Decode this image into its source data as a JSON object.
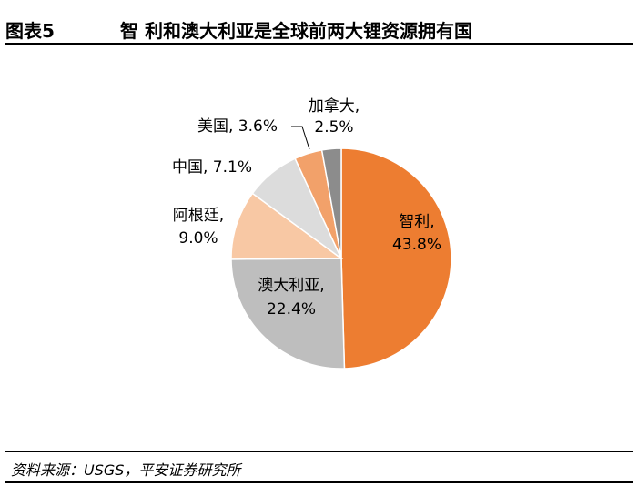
{
  "header": {
    "figure_label": "图表5",
    "title": "智 利和澳大利亚是全球前两大锂资源拥有国"
  },
  "chart_data": {
    "type": "pie",
    "title": "智 利和澳大利亚是全球前两大锂资源拥有国",
    "slices": [
      {
        "name": "智利",
        "value": 43.8,
        "label_line1": "智利,",
        "label_line2": "43.8%",
        "color": "#ED7D31"
      },
      {
        "name": "澳大利亚",
        "value": 22.4,
        "label_line1": "澳大利亚,",
        "label_line2": "22.4%",
        "color": "#BEBEBE"
      },
      {
        "name": "阿根廷",
        "value": 9.0,
        "label_line1": "阿根廷,",
        "label_line2": "9.0%",
        "color": "#F8C8A4"
      },
      {
        "name": "中国",
        "value": 7.1,
        "label_line1": "中国, 7.1%",
        "label_line2": "",
        "color": "#DCDCDC"
      },
      {
        "name": "美国",
        "value": 3.6,
        "label_line1": "美国, 3.6%",
        "label_line2": "",
        "color": "#F2A16A"
      },
      {
        "name": "加拿大",
        "value": 2.5,
        "label_line1": "加拿大,",
        "label_line2": "2.5%",
        "color": "#8C8C8C"
      }
    ],
    "start_angle_deg": 0,
    "direction": "clockwise"
  },
  "footer": {
    "source": "资料来源：USGS，平安证券研究所"
  }
}
